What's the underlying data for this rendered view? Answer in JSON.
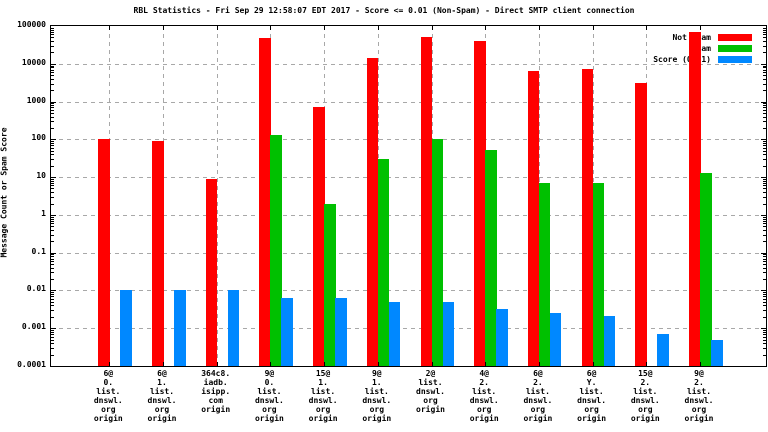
{
  "window": {
    "title": "RBL Statistics - Fri Sep 29 12:58:07 EDT 2017 - Score <= 0.01 (Non-Spam) - Direct SMTP client connection"
  },
  "colors": {
    "not_spam": "#ff0000",
    "spam": "#00c000",
    "score": "#0088ff",
    "grid": "#a8a8a8",
    "frame": "#000000",
    "background": "#ffffff"
  },
  "chart_data": {
    "type": "bar",
    "title": "RBL Statistics - Fri Sep 29 12:58:07 EDT 2017 - Score <= 0.01 (Non-Spam) - Direct SMTP client connection",
    "xlabel": "",
    "ylabel": "Message Count or Spam Score",
    "y_scale": "log",
    "ylim": [
      0.0001,
      100000
    ],
    "y_tick_labels": [
      "100000",
      "10000",
      "1000",
      "100",
      "10",
      "1",
      "0.1",
      "0.01",
      "0.001",
      "0.0001"
    ],
    "grid": true,
    "legend_position": "top-right-inside",
    "categories": [
      [
        "6@",
        "0.",
        "list.",
        "dnswl.",
        "org",
        "origin"
      ],
      [
        "6@",
        "1.",
        "list.",
        "dnswl.",
        "org",
        "origin"
      ],
      [
        "364c8.",
        "iadb.",
        "isipp.",
        "com",
        "origin"
      ],
      [
        "9@",
        "0.",
        "list.",
        "dnswl.",
        "org",
        "origin"
      ],
      [
        "15@",
        "1.",
        "list.",
        "dnswl.",
        "org",
        "origin"
      ],
      [
        "9@",
        "1.",
        "list.",
        "dnswl.",
        "org",
        "origin"
      ],
      [
        "2@",
        "list.",
        "dnswl.",
        "org",
        "origin"
      ],
      [
        "4@",
        "2.",
        "list.",
        "dnswl.",
        "org",
        "origin"
      ],
      [
        "6@",
        "2.",
        "list.",
        "dnswl.",
        "org",
        "origin"
      ],
      [
        "6@",
        "Y.",
        "list.",
        "dnswl.",
        "org",
        "origin"
      ],
      [
        "15@",
        "2.",
        "list.",
        "dnswl.",
        "org",
        "origin"
      ],
      [
        "9@",
        "2.",
        "list.",
        "dnswl.",
        "org",
        "origin"
      ]
    ],
    "series": [
      {
        "name": "Not Spam",
        "color": "#ff0000",
        "values": [
          100,
          90,
          9,
          48000,
          700,
          14000,
          52000,
          40000,
          6500,
          7500,
          3200,
          70000
        ]
      },
      {
        "name": "Spam",
        "color": "#00c000",
        "values": [
          null,
          null,
          null,
          130,
          2,
          30,
          100,
          52,
          7,
          7,
          null,
          13
        ]
      },
      {
        "name": "Score (0.01)",
        "color": "#0088ff",
        "values": [
          0.01,
          0.01,
          0.01,
          0.0065,
          0.0065,
          0.005,
          0.005,
          0.0033,
          0.0025,
          0.0021,
          0.0007,
          0.0005
        ]
      }
    ]
  }
}
